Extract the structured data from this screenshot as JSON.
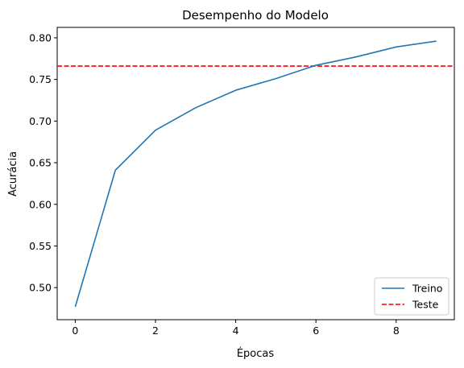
{
  "chart_data": {
    "type": "line",
    "title": "Desempenho do Modelo",
    "xlabel": "Épocas",
    "ylabel": "Acurácia",
    "xlim": [
      -0.45,
      9.45
    ],
    "ylim": [
      0.4615,
      0.8125
    ],
    "x_ticks": [
      0,
      2,
      4,
      6,
      8
    ],
    "y_ticks": [
      0.5,
      0.55,
      0.6,
      0.65,
      0.7,
      0.75,
      0.8
    ],
    "x_tick_labels": [
      "0",
      "2",
      "4",
      "6",
      "8"
    ],
    "y_tick_labels": [
      "0.50",
      "0.55",
      "0.60",
      "0.65",
      "0.70",
      "0.75",
      "0.80"
    ],
    "grid": false,
    "legend_position": "bottom-right",
    "series": [
      {
        "name": "Treino",
        "style": "solid",
        "color": "#1f77b4",
        "x": [
          0,
          1,
          2,
          3,
          4,
          5,
          6,
          7,
          8,
          9
        ],
        "values": [
          0.477,
          0.641,
          0.689,
          0.716,
          0.737,
          0.751,
          0.767,
          0.777,
          0.789,
          0.796
        ]
      }
    ],
    "reference_lines": [
      {
        "name": "Teste",
        "style": "dashed",
        "color": "#ff0000",
        "y": 0.766
      }
    ]
  }
}
